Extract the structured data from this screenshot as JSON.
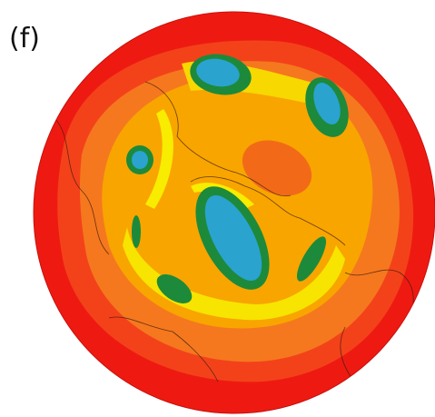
{
  "panel_label": "(f)"
}
